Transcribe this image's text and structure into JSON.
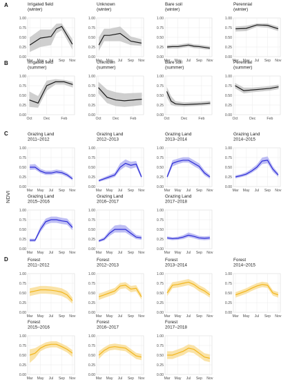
{
  "figure": {
    "ylabel": "NDVI",
    "y_ticks": [
      "0.00",
      "0.25",
      "0.50",
      "0.75",
      "1.00"
    ],
    "winter_x_ticks": [
      "Mar",
      "May",
      "Jul",
      "Sep",
      "Nov"
    ],
    "summer_x_ticks": [
      "Oct",
      "Dec",
      "Feb"
    ],
    "colors": {
      "black": "#1a1a1a",
      "blue": "#2b2bd6",
      "orange": "#f2b51c"
    }
  },
  "chart_data": [
    {
      "type": "line",
      "group": "A",
      "title": "Irrigated field\n(winter)",
      "x_kind": "winter",
      "color": "black",
      "x": [
        3,
        5,
        7,
        8,
        9,
        11
      ],
      "y": [
        0.3,
        0.48,
        0.52,
        0.72,
        0.78,
        0.32
      ],
      "lo": [
        0.12,
        0.25,
        0.3,
        0.6,
        0.68,
        0.18
      ],
      "hi": [
        0.5,
        0.7,
        0.7,
        0.85,
        0.86,
        0.45
      ],
      "ylim": [
        0,
        1
      ]
    },
    {
      "type": "line",
      "group": "A",
      "title": "Unknown\n(winter)",
      "x_kind": "winter",
      "color": "black",
      "x": [
        3,
        4,
        5,
        7,
        9,
        11
      ],
      "y": [
        0.3,
        0.55,
        0.55,
        0.6,
        0.4,
        0.35
      ],
      "lo": [
        0.15,
        0.4,
        0.4,
        0.4,
        0.3,
        0.28
      ],
      "hi": [
        0.5,
        0.72,
        0.72,
        0.78,
        0.52,
        0.45
      ],
      "ylim": [
        0,
        1
      ]
    },
    {
      "type": "line",
      "group": "A",
      "title": "Bare soil\n(winter)",
      "x_kind": "winter",
      "color": "black",
      "x": [
        3,
        4,
        5,
        6,
        7,
        8,
        9,
        10,
        11
      ],
      "y": [
        0.25,
        0.26,
        0.26,
        0.28,
        0.3,
        0.27,
        0.26,
        0.24,
        0.22
      ],
      "lo": [
        0.2,
        0.21,
        0.21,
        0.23,
        0.25,
        0.22,
        0.21,
        0.19,
        0.18
      ],
      "hi": [
        0.3,
        0.31,
        0.31,
        0.33,
        0.35,
        0.32,
        0.31,
        0.29,
        0.27
      ],
      "ylim": [
        0,
        1
      ]
    },
    {
      "type": "line",
      "group": "A",
      "title": "Perennial\n(winter)",
      "x_kind": "winter",
      "color": "black",
      "x": [
        3,
        5,
        7,
        9,
        11
      ],
      "y": [
        0.72,
        0.73,
        0.82,
        0.81,
        0.72
      ],
      "lo": [
        0.65,
        0.66,
        0.77,
        0.75,
        0.66
      ],
      "hi": [
        0.78,
        0.8,
        0.86,
        0.86,
        0.78
      ],
      "ylim": [
        0,
        1
      ]
    },
    {
      "type": "line",
      "group": "B",
      "title": "Irrigated field\n(summer)",
      "x_kind": "summer",
      "color": "black",
      "x": [
        0,
        1,
        2,
        3,
        4,
        5
      ],
      "y": [
        0.38,
        0.3,
        0.75,
        0.85,
        0.85,
        0.78
      ],
      "lo": [
        0.2,
        0.18,
        0.62,
        0.78,
        0.78,
        0.7
      ],
      "hi": [
        0.6,
        0.48,
        0.88,
        0.92,
        0.9,
        0.85
      ],
      "ylim": [
        0,
        1
      ]
    },
    {
      "type": "line",
      "group": "B",
      "title": "Unknown\n(summer)",
      "x_kind": "summer",
      "color": "black",
      "x": [
        0,
        1,
        2,
        3,
        4,
        5
      ],
      "y": [
        0.7,
        0.45,
        0.38,
        0.36,
        0.38,
        0.4
      ],
      "lo": [
        0.55,
        0.3,
        0.22,
        0.2,
        0.22,
        0.25
      ],
      "hi": [
        0.85,
        0.65,
        0.58,
        0.55,
        0.56,
        0.57
      ],
      "ylim": [
        0,
        1
      ]
    },
    {
      "type": "line",
      "group": "B",
      "title": "Bare soil\n(summer)",
      "x_kind": "summer",
      "color": "black",
      "x": [
        0,
        0.5,
        1,
        2,
        3,
        4,
        5
      ],
      "y": [
        0.6,
        0.35,
        0.28,
        0.26,
        0.27,
        0.28,
        0.3
      ],
      "lo": [
        0.45,
        0.25,
        0.22,
        0.21,
        0.22,
        0.23,
        0.25
      ],
      "hi": [
        0.72,
        0.48,
        0.35,
        0.32,
        0.33,
        0.34,
        0.36
      ],
      "ylim": [
        0,
        1
      ]
    },
    {
      "type": "line",
      "group": "B",
      "title": "Perennial\n(summer)",
      "x_kind": "summer",
      "color": "black",
      "x": [
        0,
        1,
        2,
        3,
        4,
        5
      ],
      "y": [
        0.75,
        0.62,
        0.64,
        0.66,
        0.68,
        0.72
      ],
      "lo": [
        0.68,
        0.55,
        0.58,
        0.6,
        0.62,
        0.66
      ],
      "hi": [
        0.82,
        0.7,
        0.7,
        0.72,
        0.74,
        0.78
      ],
      "ylim": [
        0,
        1
      ]
    },
    {
      "type": "line",
      "group": "C",
      "title": "Grazing Land\n2011–2012",
      "x_kind": "winter",
      "color": "blue",
      "x": [
        3,
        4,
        5,
        6,
        7,
        8,
        9,
        10,
        11
      ],
      "y": [
        0.5,
        0.5,
        0.4,
        0.35,
        0.35,
        0.38,
        0.36,
        0.3,
        0.2
      ],
      "lo": [
        0.43,
        0.44,
        0.35,
        0.3,
        0.3,
        0.33,
        0.31,
        0.25,
        0.16
      ],
      "hi": [
        0.57,
        0.58,
        0.46,
        0.41,
        0.41,
        0.44,
        0.42,
        0.35,
        0.25
      ],
      "ylim": [
        0,
        1
      ]
    },
    {
      "type": "line",
      "group": "C",
      "title": "Grazing Land\n2012–2013",
      "x_kind": "winter",
      "color": "blue",
      "x": [
        3,
        4,
        5,
        6,
        7,
        8,
        9,
        10,
        11
      ],
      "y": [
        0.15,
        0.2,
        0.25,
        0.3,
        0.5,
        0.6,
        0.55,
        0.58,
        0.25
      ],
      "lo": [
        0.12,
        0.16,
        0.2,
        0.25,
        0.42,
        0.52,
        0.46,
        0.5,
        0.2
      ],
      "hi": [
        0.18,
        0.24,
        0.3,
        0.36,
        0.6,
        0.7,
        0.64,
        0.66,
        0.3
      ],
      "ylim": [
        0,
        1
      ]
    },
    {
      "type": "line",
      "group": "C",
      "title": "Grazing Land\n2013–2014",
      "x_kind": "winter",
      "color": "blue",
      "x": [
        3,
        4,
        5,
        6,
        7,
        8,
        9,
        10,
        11
      ],
      "y": [
        0.25,
        0.6,
        0.65,
        0.68,
        0.68,
        0.6,
        0.52,
        0.35,
        0.25
      ],
      "lo": [
        0.2,
        0.52,
        0.58,
        0.62,
        0.62,
        0.53,
        0.45,
        0.29,
        0.2
      ],
      "hi": [
        0.3,
        0.68,
        0.72,
        0.76,
        0.76,
        0.68,
        0.6,
        0.42,
        0.3
      ],
      "ylim": [
        0,
        1
      ]
    },
    {
      "type": "line",
      "group": "C",
      "title": "Grazing Land\n2014–2015",
      "x_kind": "winter",
      "color": "blue",
      "x": [
        3,
        4,
        5,
        6,
        7,
        8,
        9,
        10,
        11
      ],
      "y": [
        0.25,
        0.28,
        0.32,
        0.4,
        0.5,
        0.66,
        0.68,
        0.45,
        0.3
      ],
      "lo": [
        0.21,
        0.24,
        0.28,
        0.35,
        0.44,
        0.58,
        0.6,
        0.38,
        0.25
      ],
      "hi": [
        0.29,
        0.32,
        0.37,
        0.46,
        0.57,
        0.75,
        0.78,
        0.52,
        0.35
      ],
      "ylim": [
        0,
        1
      ]
    },
    {
      "type": "line",
      "group": "C",
      "title": "Grazing Land\n2015–2016",
      "x_kind": "winter",
      "color": "blue",
      "x": [
        3,
        4,
        5,
        6,
        7,
        8,
        9,
        10,
        11
      ],
      "y": [
        0.22,
        0.22,
        0.5,
        0.7,
        0.75,
        0.75,
        0.72,
        0.7,
        0.55
      ],
      "lo": [
        0.18,
        0.18,
        0.43,
        0.62,
        0.67,
        0.67,
        0.64,
        0.62,
        0.48
      ],
      "hi": [
        0.26,
        0.26,
        0.58,
        0.78,
        0.83,
        0.83,
        0.8,
        0.78,
        0.62
      ],
      "ylim": [
        0,
        1
      ]
    },
    {
      "type": "line",
      "group": "C",
      "title": "Grazing Land\n2016–2017",
      "x_kind": "winter",
      "color": "blue",
      "x": [
        3,
        4,
        5,
        6,
        7,
        8,
        9,
        10,
        11
      ],
      "y": [
        0.2,
        0.25,
        0.4,
        0.5,
        0.5,
        0.5,
        0.4,
        0.3,
        0.28
      ],
      "lo": [
        0.17,
        0.21,
        0.33,
        0.42,
        0.42,
        0.42,
        0.33,
        0.25,
        0.23
      ],
      "hi": [
        0.23,
        0.3,
        0.47,
        0.6,
        0.62,
        0.6,
        0.48,
        0.36,
        0.33
      ],
      "ylim": [
        0,
        1
      ]
    },
    {
      "type": "line",
      "group": "C",
      "title": "Grazing Land\n2017–2018",
      "x_kind": "winter",
      "color": "blue",
      "x": [
        3,
        4,
        5,
        6,
        7,
        8,
        9,
        10,
        11
      ],
      "y": [
        0.28,
        0.26,
        0.27,
        0.3,
        0.35,
        0.32,
        0.28,
        0.27,
        0.28
      ],
      "lo": [
        0.24,
        0.22,
        0.23,
        0.25,
        0.3,
        0.27,
        0.23,
        0.22,
        0.23
      ],
      "hi": [
        0.32,
        0.3,
        0.31,
        0.35,
        0.42,
        0.38,
        0.33,
        0.32,
        0.33
      ],
      "ylim": [
        0,
        1
      ]
    },
    {
      "type": "line",
      "group": "D",
      "title": "Forest\n2011–2012",
      "x_kind": "winter",
      "color": "orange",
      "x": [
        3,
        4,
        5,
        6,
        7,
        8,
        9,
        10,
        11
      ],
      "y": [
        0.52,
        0.55,
        0.58,
        0.58,
        0.57,
        0.55,
        0.52,
        0.45,
        0.3
      ],
      "lo": [
        0.42,
        0.45,
        0.48,
        0.48,
        0.47,
        0.45,
        0.42,
        0.35,
        0.22
      ],
      "hi": [
        0.62,
        0.65,
        0.68,
        0.68,
        0.67,
        0.65,
        0.62,
        0.55,
        0.38
      ],
      "ylim": [
        0,
        1
      ]
    },
    {
      "type": "line",
      "group": "D",
      "title": "Forest\n2012–2013",
      "x_kind": "winter",
      "color": "orange",
      "x": [
        3,
        4,
        5,
        6,
        7,
        8,
        9,
        10,
        11
      ],
      "y": [
        0.4,
        0.45,
        0.5,
        0.55,
        0.68,
        0.7,
        0.6,
        0.62,
        0.4
      ],
      "lo": [
        0.32,
        0.37,
        0.42,
        0.47,
        0.6,
        0.62,
        0.52,
        0.54,
        0.33
      ],
      "hi": [
        0.48,
        0.53,
        0.58,
        0.63,
        0.76,
        0.78,
        0.68,
        0.7,
        0.47
      ],
      "ylim": [
        0,
        1
      ]
    },
    {
      "type": "line",
      "group": "D",
      "title": "Forest\n2013–2014",
      "x_kind": "winter",
      "color": "orange",
      "x": [
        3,
        4,
        5,
        6,
        7,
        8,
        9,
        10,
        11
      ],
      "y": [
        0.5,
        0.7,
        0.72,
        0.75,
        0.78,
        0.72,
        0.62,
        0.55,
        0.45
      ],
      "lo": [
        0.42,
        0.62,
        0.64,
        0.67,
        0.7,
        0.64,
        0.54,
        0.47,
        0.38
      ],
      "hi": [
        0.58,
        0.78,
        0.8,
        0.83,
        0.86,
        0.8,
        0.7,
        0.63,
        0.52
      ],
      "ylim": [
        0,
        1
      ]
    },
    {
      "type": "line",
      "group": "D",
      "title": "Forest\n2014–2015",
      "x_kind": "winter",
      "color": "orange",
      "x": [
        3,
        4,
        5,
        6,
        7,
        8,
        9,
        10,
        11
      ],
      "y": [
        0.45,
        0.5,
        0.55,
        0.62,
        0.68,
        0.72,
        0.7,
        0.5,
        0.45
      ],
      "lo": [
        0.38,
        0.43,
        0.48,
        0.55,
        0.61,
        0.65,
        0.63,
        0.43,
        0.38
      ],
      "hi": [
        0.52,
        0.57,
        0.62,
        0.69,
        0.75,
        0.79,
        0.77,
        0.57,
        0.52
      ],
      "ylim": [
        0,
        1
      ]
    },
    {
      "type": "line",
      "group": "D",
      "title": "Forest\n2015–2016",
      "x_kind": "winter",
      "color": "orange",
      "x": [
        3,
        4,
        5,
        6,
        7,
        8,
        9,
        10,
        11
      ],
      "y": [
        0.5,
        0.55,
        0.68,
        0.75,
        0.78,
        0.78,
        0.72,
        0.65,
        0.55
      ],
      "lo": [
        0.3,
        0.42,
        0.6,
        0.67,
        0.7,
        0.7,
        0.64,
        0.57,
        0.45
      ],
      "hi": [
        0.65,
        0.68,
        0.76,
        0.83,
        0.86,
        0.86,
        0.8,
        0.73,
        0.63
      ],
      "ylim": [
        0,
        1
      ]
    },
    {
      "type": "line",
      "group": "D",
      "title": "Forest\n2016–2017",
      "x_kind": "winter",
      "color": "orange",
      "x": [
        3,
        4,
        5,
        6,
        7,
        8,
        9,
        10,
        11
      ],
      "y": [
        0.5,
        0.62,
        0.7,
        0.72,
        0.7,
        0.68,
        0.58,
        0.48,
        0.45
      ],
      "lo": [
        0.4,
        0.54,
        0.62,
        0.64,
        0.62,
        0.6,
        0.5,
        0.4,
        0.37
      ],
      "hi": [
        0.6,
        0.7,
        0.78,
        0.8,
        0.78,
        0.76,
        0.66,
        0.56,
        0.53
      ],
      "ylim": [
        0,
        1
      ]
    },
    {
      "type": "line",
      "group": "D",
      "title": "Forest\n2017–2018",
      "x_kind": "winter",
      "color": "orange",
      "x": [
        3,
        4,
        5,
        6,
        7,
        8,
        9,
        10,
        11
      ],
      "y": [
        0.5,
        0.5,
        0.55,
        0.6,
        0.68,
        0.65,
        0.55,
        0.45,
        0.42
      ],
      "lo": [
        0.4,
        0.4,
        0.45,
        0.5,
        0.58,
        0.55,
        0.45,
        0.35,
        0.32
      ],
      "hi": [
        0.6,
        0.6,
        0.65,
        0.7,
        0.78,
        0.75,
        0.65,
        0.55,
        0.52
      ],
      "ylim": [
        0,
        1
      ]
    }
  ]
}
